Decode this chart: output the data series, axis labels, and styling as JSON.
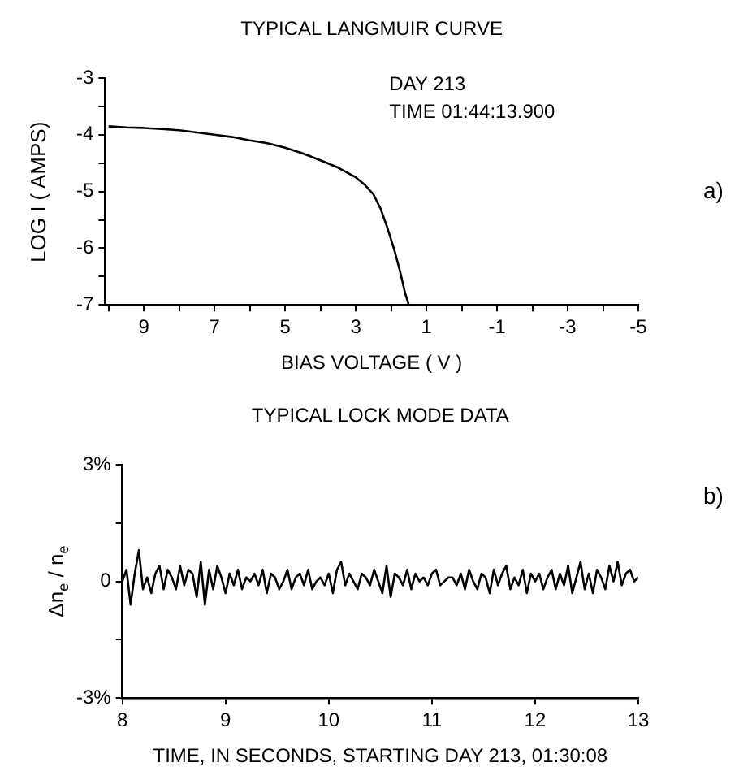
{
  "chart_data": [
    {
      "type": "line",
      "title": "TYPICAL LANGMUIR CURVE",
      "xlabel": "BIAS VOLTAGE ( V )",
      "ylabel": "LOG I ( AMPS)",
      "x": [
        10,
        9.5,
        9,
        8.5,
        8,
        7.5,
        7,
        6.5,
        6,
        5.5,
        5,
        4.5,
        4,
        3.5,
        3,
        2.75,
        2.5,
        2.3,
        2.1,
        1.9,
        1.75,
        1.6,
        1.5
      ],
      "series": [
        {
          "color": "#000000",
          "values": [
            -3.85,
            -3.87,
            -3.88,
            -3.9,
            -3.92,
            -3.96,
            -4.0,
            -4.04,
            -4.1,
            -4.15,
            -4.23,
            -4.33,
            -4.45,
            -4.58,
            -4.75,
            -4.88,
            -5.05,
            -5.3,
            -5.65,
            -6.05,
            -6.4,
            -6.8,
            -7.0
          ]
        }
      ],
      "xlim": [
        10.1,
        -5
      ],
      "ylim": [
        -7,
        -3
      ],
      "xticks": [
        {
          "value": 10,
          "label": null
        },
        9,
        {
          "value": 8,
          "label": null
        },
        7,
        {
          "value": 6,
          "label": null
        },
        5,
        {
          "value": 4,
          "label": null
        },
        3,
        {
          "value": 2,
          "label": null
        },
        1,
        {
          "value": 0,
          "label": null
        },
        -1,
        {
          "value": -2,
          "label": null
        },
        -3,
        {
          "value": -4,
          "label": null
        },
        -5
      ],
      "yticks": [
        -7,
        {
          "value": -6.5,
          "label": null
        },
        -6,
        {
          "value": -5.5,
          "label": null
        },
        -5,
        {
          "value": -4.5,
          "label": null
        },
        -4,
        {
          "value": -3.5,
          "label": null
        },
        -3
      ],
      "grid": false,
      "legend": false,
      "marker": "none",
      "line_style": "solid",
      "annotations": [
        "DAY 213",
        "TIME 01:44:13.900",
        "a)"
      ]
    },
    {
      "type": "line",
      "title": "TYPICAL LOCK MODE DATA",
      "xlabel": "TIME, IN SECONDS, STARTING DAY 213, 01:30:08",
      "ylabel": "Δn$_{e}$ / n$_{e}$",
      "x": [
        8,
        8.04,
        8.08,
        8.12,
        8.16,
        8.2,
        8.24,
        8.28,
        8.32,
        8.36,
        8.4,
        8.44,
        8.48,
        8.52,
        8.56,
        8.6,
        8.64,
        8.68,
        8.72,
        8.76,
        8.8,
        8.84,
        8.88,
        8.92,
        8.96,
        9,
        9.04,
        9.08,
        9.12,
        9.16,
        9.2,
        9.24,
        9.28,
        9.32,
        9.36,
        9.4,
        9.44,
        9.48,
        9.52,
        9.56,
        9.6,
        9.64,
        9.68,
        9.72,
        9.76,
        9.8,
        9.84,
        9.88,
        9.92,
        9.96,
        10,
        10.04,
        10.08,
        10.12,
        10.16,
        10.2,
        10.24,
        10.28,
        10.32,
        10.36,
        10.4,
        10.44,
        10.48,
        10.52,
        10.56,
        10.6,
        10.64,
        10.68,
        10.72,
        10.76,
        10.8,
        10.84,
        10.88,
        10.92,
        10.96,
        11,
        11.04,
        11.08,
        11.12,
        11.16,
        11.2,
        11.24,
        11.28,
        11.32,
        11.36,
        11.4,
        11.44,
        11.48,
        11.52,
        11.56,
        11.6,
        11.64,
        11.68,
        11.72,
        11.76,
        11.8,
        11.84,
        11.88,
        11.92,
        11.96,
        12,
        12.04,
        12.08,
        12.12,
        12.16,
        12.2,
        12.24,
        12.28,
        12.32,
        12.36,
        12.4,
        12.44,
        12.48,
        12.52,
        12.56,
        12.6,
        12.64,
        12.68,
        12.72,
        12.76,
        12.8,
        12.84,
        12.88,
        12.92,
        12.96,
        13
      ],
      "series": [
        {
          "color": "#000000",
          "values": [
            0.0,
            0.3,
            -0.6,
            0.2,
            0.8,
            -0.2,
            0.1,
            -0.3,
            0.2,
            0.4,
            -0.2,
            0.3,
            0.1,
            -0.2,
            0.4,
            -0.1,
            0.3,
            0.2,
            -0.4,
            0.5,
            -0.6,
            0.3,
            -0.2,
            0.4,
            0.1,
            -0.3,
            0.2,
            -0.1,
            0.3,
            -0.2,
            0.1,
            0.0,
            0.2,
            -0.1,
            0.3,
            -0.3,
            0.2,
            0.1,
            -0.2,
            0.0,
            0.3,
            -0.2,
            0.1,
            0.2,
            -0.1,
            0.3,
            -0.2,
            0.0,
            0.1,
            -0.1,
            0.2,
            -0.3,
            0.3,
            0.5,
            -0.1,
            0.2,
            0.0,
            -0.2,
            0.2,
            0.1,
            -0.1,
            0.3,
            0.0,
            -0.3,
            0.4,
            -0.4,
            0.2,
            0.1,
            -0.1,
            0.3,
            -0.2,
            0.2,
            0.0,
            0.1,
            -0.1,
            0.2,
            0.3,
            -0.1,
            0.0,
            0.1,
            0.1,
            -0.1,
            0.2,
            -0.2,
            0.3,
            0.0,
            -0.2,
            0.2,
            0.1,
            -0.3,
            0.3,
            -0.1,
            0.2,
            0.4,
            -0.2,
            0.1,
            -0.1,
            0.3,
            -0.3,
            0.2,
            0.0,
            0.2,
            -0.2,
            0.1,
            0.3,
            -0.2,
            0.2,
            -0.1,
            0.4,
            -0.3,
            0.1,
            0.5,
            -0.2,
            0.2,
            -0.3,
            0.3,
            0.1,
            -0.2,
            0.4,
            0.0,
            0.5,
            -0.1,
            0.2,
            0.3,
            0.0,
            0.1
          ]
        }
      ],
      "xlim": [
        8,
        13
      ],
      "ylim": [
        -3,
        3
      ],
      "xticks": [
        8,
        9,
        10,
        11,
        12,
        13
      ],
      "yticks": [
        {
          "value": -3,
          "label": "-3%"
        },
        {
          "value": -1.5,
          "label": null
        },
        0,
        {
          "value": 1.5,
          "label": null
        },
        {
          "value": 3,
          "label": "3%"
        }
      ],
      "grid": false,
      "legend": false,
      "marker": "none",
      "line_style": "solid",
      "annotations": [
        "b)"
      ]
    }
  ]
}
